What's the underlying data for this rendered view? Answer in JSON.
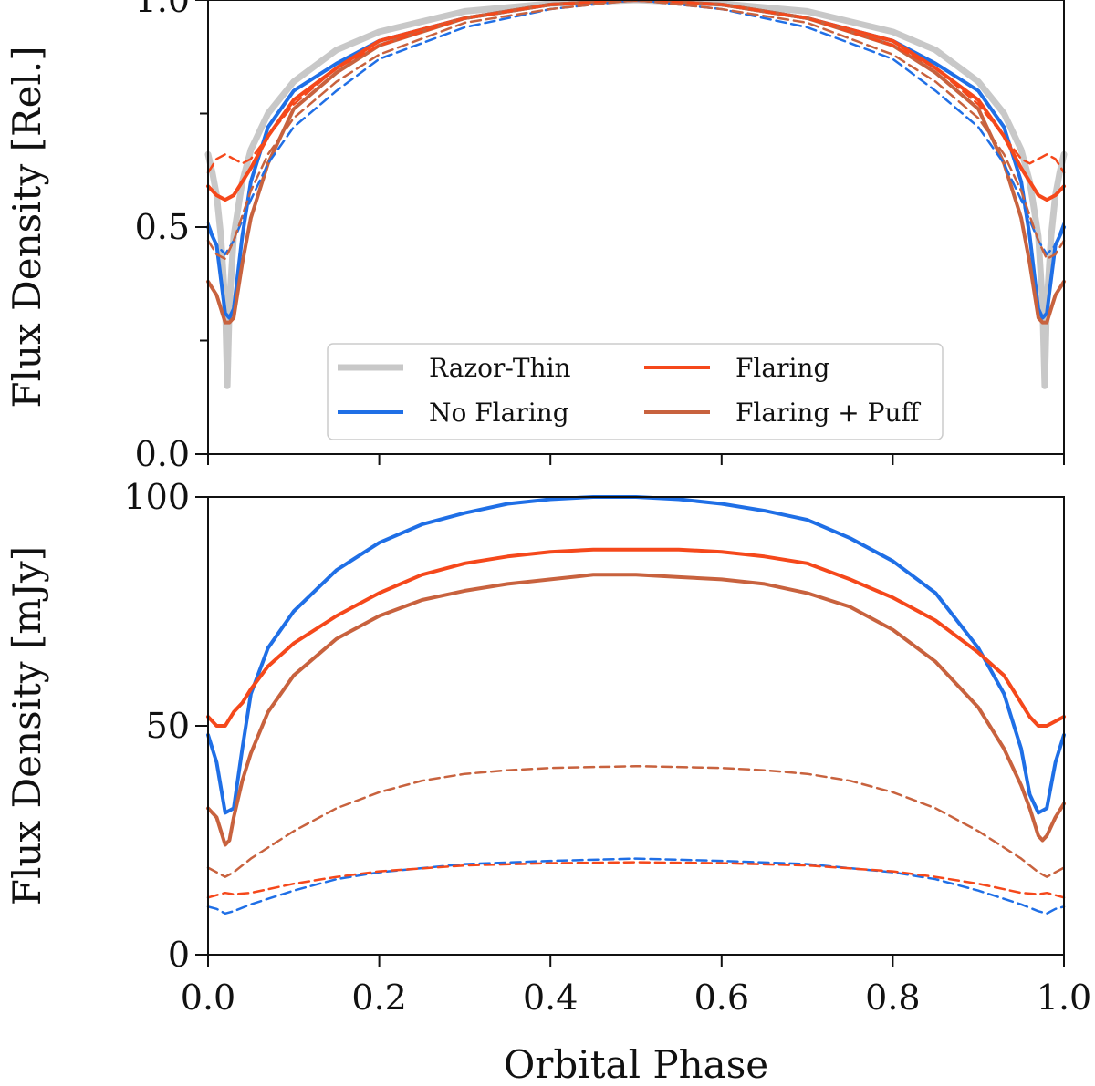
{
  "chart_data": [
    {
      "type": "line",
      "panel": "top",
      "ylabel": "Flux Density [Rel.]",
      "xlabel": "",
      "xlim": [
        0,
        1
      ],
      "ylim": [
        0,
        1
      ],
      "yticks": [
        0,
        0.25,
        0.5,
        0.75,
        1
      ],
      "ytick_labels": [
        "0.0",
        "",
        "0.5",
        "",
        "1.0"
      ],
      "legend": {
        "placement": "lower-center",
        "entries": [
          {
            "label": "Razor-Thin",
            "color": "#c8c8c8"
          },
          {
            "label": "No Flaring",
            "color": "#1f6fe6"
          },
          {
            "label": "Flaring",
            "color": "#f5481b"
          },
          {
            "label": "Flaring + Puff",
            "color": "#c8623e"
          }
        ]
      },
      "series": [
        {
          "name": "Razor-Thin",
          "style": "solid",
          "color": "#c8c8c8",
          "x": [
            0,
            0.005,
            0.01,
            0.015,
            0.02,
            0.0225,
            0.025,
            0.03,
            0.04,
            0.05,
            0.07,
            0.1,
            0.15,
            0.2,
            0.3,
            0.4,
            0.5,
            0.6,
            0.7,
            0.8,
            0.85,
            0.9,
            0.93,
            0.95,
            0.96,
            0.97,
            0.975,
            0.9775,
            0.98,
            0.985,
            0.99,
            0.995,
            1
          ],
          "y": [
            0.66,
            0.62,
            0.57,
            0.48,
            0.33,
            0.15,
            0.33,
            0.48,
            0.6,
            0.67,
            0.75,
            0.82,
            0.89,
            0.93,
            0.975,
            0.992,
            1.0,
            0.992,
            0.975,
            0.93,
            0.89,
            0.82,
            0.75,
            0.67,
            0.6,
            0.48,
            0.33,
            0.15,
            0.33,
            0.48,
            0.57,
            0.62,
            0.66
          ]
        },
        {
          "name": "No Flaring",
          "style": "solid",
          "color": "#1f6fe6",
          "x": [
            0,
            0.01,
            0.02,
            0.025,
            0.03,
            0.04,
            0.05,
            0.07,
            0.1,
            0.15,
            0.2,
            0.3,
            0.4,
            0.5,
            0.6,
            0.7,
            0.8,
            0.85,
            0.9,
            0.93,
            0.95,
            0.96,
            0.97,
            0.975,
            0.98,
            0.99,
            1
          ],
          "y": [
            0.5,
            0.46,
            0.31,
            0.3,
            0.32,
            0.48,
            0.6,
            0.72,
            0.8,
            0.86,
            0.91,
            0.96,
            0.99,
            1.0,
            0.99,
            0.96,
            0.91,
            0.86,
            0.8,
            0.72,
            0.6,
            0.48,
            0.32,
            0.3,
            0.31,
            0.46,
            0.5
          ]
        },
        {
          "name": "Flaring",
          "style": "solid",
          "color": "#f5481b",
          "x": [
            0,
            0.01,
            0.02,
            0.03,
            0.04,
            0.05,
            0.07,
            0.1,
            0.15,
            0.2,
            0.3,
            0.4,
            0.5,
            0.6,
            0.7,
            0.8,
            0.85,
            0.9,
            0.93,
            0.95,
            0.96,
            0.97,
            0.98,
            0.99,
            1
          ],
          "y": [
            0.59,
            0.57,
            0.56,
            0.57,
            0.6,
            0.63,
            0.7,
            0.78,
            0.85,
            0.91,
            0.96,
            0.99,
            1.0,
            0.99,
            0.96,
            0.91,
            0.85,
            0.78,
            0.7,
            0.63,
            0.6,
            0.57,
            0.56,
            0.57,
            0.59
          ]
        },
        {
          "name": "Flaring + Puff",
          "style": "solid",
          "color": "#c8623e",
          "x": [
            0,
            0.01,
            0.02,
            0.025,
            0.03,
            0.04,
            0.05,
            0.07,
            0.1,
            0.15,
            0.2,
            0.3,
            0.4,
            0.5,
            0.6,
            0.7,
            0.8,
            0.85,
            0.9,
            0.93,
            0.95,
            0.96,
            0.97,
            0.975,
            0.98,
            0.99,
            1
          ],
          "y": [
            0.38,
            0.35,
            0.29,
            0.29,
            0.3,
            0.42,
            0.52,
            0.64,
            0.76,
            0.84,
            0.9,
            0.96,
            0.99,
            1.0,
            0.99,
            0.96,
            0.9,
            0.84,
            0.76,
            0.64,
            0.52,
            0.42,
            0.3,
            0.29,
            0.29,
            0.35,
            0.38
          ]
        },
        {
          "name": "No Flaring (dashed)",
          "style": "dashed",
          "color": "#1f6fe6",
          "x": [
            0,
            0.01,
            0.02,
            0.03,
            0.05,
            0.07,
            0.1,
            0.15,
            0.2,
            0.3,
            0.4,
            0.5,
            0.6,
            0.7,
            0.8,
            0.85,
            0.9,
            0.93,
            0.95,
            0.97,
            0.98,
            0.99,
            1
          ],
          "y": [
            0.51,
            0.46,
            0.44,
            0.47,
            0.56,
            0.64,
            0.72,
            0.8,
            0.87,
            0.94,
            0.98,
            1.0,
            0.98,
            0.94,
            0.87,
            0.8,
            0.72,
            0.64,
            0.56,
            0.47,
            0.44,
            0.46,
            0.51
          ]
        },
        {
          "name": "Flaring (dashed)",
          "style": "dashed",
          "color": "#f5481b",
          "x": [
            0,
            0.01,
            0.02,
            0.03,
            0.04,
            0.05,
            0.07,
            0.1,
            0.15,
            0.2,
            0.3,
            0.4,
            0.5,
            0.6,
            0.7,
            0.8,
            0.85,
            0.9,
            0.93,
            0.95,
            0.96,
            0.97,
            0.98,
            0.99,
            1
          ],
          "y": [
            0.62,
            0.65,
            0.66,
            0.65,
            0.64,
            0.65,
            0.7,
            0.77,
            0.85,
            0.9,
            0.96,
            0.99,
            1.0,
            0.99,
            0.96,
            0.9,
            0.85,
            0.77,
            0.7,
            0.65,
            0.64,
            0.65,
            0.66,
            0.65,
            0.62
          ]
        },
        {
          "name": "Flaring + Puff (dashed)",
          "style": "dashed",
          "color": "#c8623e",
          "x": [
            0,
            0.01,
            0.02,
            0.03,
            0.05,
            0.07,
            0.1,
            0.15,
            0.2,
            0.3,
            0.4,
            0.5,
            0.6,
            0.7,
            0.8,
            0.85,
            0.9,
            0.93,
            0.95,
            0.97,
            0.98,
            0.99,
            1
          ],
          "y": [
            0.47,
            0.44,
            0.43,
            0.47,
            0.58,
            0.66,
            0.74,
            0.82,
            0.88,
            0.95,
            0.98,
            1.0,
            0.98,
            0.95,
            0.88,
            0.82,
            0.74,
            0.66,
            0.58,
            0.47,
            0.43,
            0.44,
            0.47
          ]
        }
      ]
    },
    {
      "type": "line",
      "panel": "bottom",
      "ylabel": "Flux Density [mJy]",
      "xlabel": "Orbital Phase",
      "xlim": [
        0,
        1
      ],
      "ylim": [
        0,
        100
      ],
      "xticks": [
        0,
        0.2,
        0.4,
        0.6,
        0.8,
        1.0
      ],
      "xtick_labels": [
        "0.0",
        "0.2",
        "0.4",
        "0.6",
        "0.8",
        "1.0"
      ],
      "yticks": [
        0,
        50,
        100
      ],
      "ytick_labels": [
        "0",
        "50",
        "100"
      ],
      "series": [
        {
          "name": "No Flaring",
          "style": "solid",
          "color": "#1f6fe6",
          "x": [
            0,
            0.01,
            0.02,
            0.03,
            0.04,
            0.05,
            0.07,
            0.1,
            0.15,
            0.2,
            0.25,
            0.3,
            0.35,
            0.4,
            0.45,
            0.5,
            0.55,
            0.6,
            0.65,
            0.7,
            0.75,
            0.8,
            0.85,
            0.9,
            0.93,
            0.95,
            0.96,
            0.97,
            0.98,
            0.99,
            1
          ],
          "y": [
            48,
            42,
            31,
            32,
            45,
            57,
            67,
            75,
            84,
            90,
            94,
            96.5,
            98.5,
            99.5,
            100,
            100,
            99.5,
            98.5,
            97,
            95,
            91,
            86,
            79,
            67,
            57,
            45,
            35,
            31,
            32,
            42,
            48
          ]
        },
        {
          "name": "Flaring",
          "style": "solid",
          "color": "#f5481b",
          "x": [
            0,
            0.01,
            0.02,
            0.03,
            0.04,
            0.05,
            0.07,
            0.1,
            0.15,
            0.2,
            0.25,
            0.3,
            0.35,
            0.4,
            0.45,
            0.5,
            0.55,
            0.6,
            0.65,
            0.7,
            0.75,
            0.8,
            0.85,
            0.9,
            0.93,
            0.95,
            0.96,
            0.97,
            0.98,
            0.99,
            1
          ],
          "y": [
            52,
            50,
            50,
            53,
            55,
            58,
            63,
            68,
            74,
            79,
            83,
            85.5,
            87,
            88,
            88.5,
            88.5,
            88.5,
            88,
            87,
            85.5,
            82,
            78,
            73,
            66,
            61,
            55,
            52,
            50,
            50,
            51,
            52
          ]
        },
        {
          "name": "Flaring + Puff",
          "style": "solid",
          "color": "#c8623e",
          "x": [
            0,
            0.01,
            0.02,
            0.025,
            0.03,
            0.04,
            0.05,
            0.07,
            0.1,
            0.15,
            0.2,
            0.25,
            0.3,
            0.35,
            0.4,
            0.45,
            0.5,
            0.55,
            0.6,
            0.65,
            0.7,
            0.75,
            0.8,
            0.85,
            0.9,
            0.93,
            0.95,
            0.96,
            0.97,
            0.975,
            0.98,
            0.99,
            1
          ],
          "y": [
            32,
            30,
            24,
            25,
            30,
            38,
            44,
            53,
            61,
            69,
            74,
            77.5,
            79.5,
            81,
            82,
            83,
            83,
            82.5,
            82,
            81,
            79,
            76,
            71,
            64,
            54,
            45,
            37,
            32,
            26,
            25,
            26,
            30,
            33
          ]
        },
        {
          "name": "No Flaring (dashed)",
          "style": "dashed",
          "color": "#1f6fe6",
          "x": [
            0,
            0.01,
            0.02,
            0.03,
            0.05,
            0.1,
            0.15,
            0.2,
            0.3,
            0.4,
            0.5,
            0.6,
            0.7,
            0.8,
            0.85,
            0.9,
            0.95,
            0.97,
            0.98,
            0.99,
            1
          ],
          "y": [
            10.5,
            10,
            9,
            9.5,
            11,
            14,
            16.5,
            18,
            19.8,
            20.5,
            21,
            20.5,
            19.8,
            18,
            16.5,
            14,
            11,
            9.5,
            9,
            10,
            10.5
          ]
        },
        {
          "name": "Flaring (dashed)",
          "style": "dashed",
          "color": "#f5481b",
          "x": [
            0,
            0.01,
            0.02,
            0.03,
            0.05,
            0.1,
            0.15,
            0.2,
            0.3,
            0.4,
            0.5,
            0.6,
            0.7,
            0.8,
            0.85,
            0.9,
            0.95,
            0.97,
            0.98,
            0.99,
            1
          ],
          "y": [
            12.5,
            13,
            13.5,
            13.2,
            13.5,
            15.5,
            17,
            18.2,
            19.5,
            20,
            20.2,
            20,
            19.5,
            18.2,
            17,
            15.5,
            13.5,
            13.2,
            13.5,
            13,
            12.5
          ]
        },
        {
          "name": "Flaring + Puff (dashed)",
          "style": "dashed",
          "color": "#c8623e",
          "x": [
            0,
            0.01,
            0.02,
            0.03,
            0.05,
            0.1,
            0.15,
            0.2,
            0.25,
            0.3,
            0.35,
            0.4,
            0.5,
            0.6,
            0.65,
            0.7,
            0.75,
            0.8,
            0.85,
            0.9,
            0.95,
            0.97,
            0.98,
            0.99,
            1
          ],
          "y": [
            19,
            18,
            17,
            18,
            21,
            27,
            32,
            35.5,
            38,
            39.5,
            40.3,
            40.8,
            41.2,
            40.8,
            40.3,
            39.5,
            38,
            35.5,
            32,
            27,
            21,
            18,
            17,
            18,
            19
          ]
        }
      ]
    }
  ]
}
